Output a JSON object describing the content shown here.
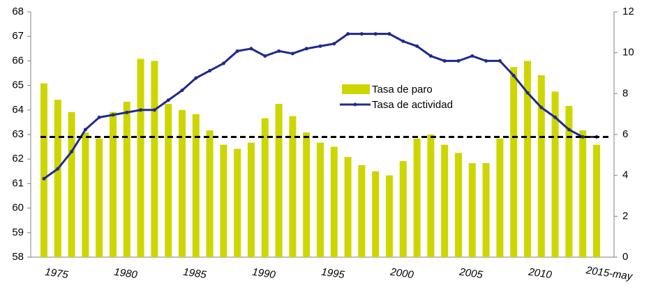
{
  "chart_data": {
    "type": "bar_line",
    "categories": [
      "1975",
      null,
      null,
      null,
      null,
      "1980",
      null,
      null,
      null,
      null,
      "1985",
      null,
      null,
      null,
      null,
      "1990",
      null,
      null,
      null,
      null,
      "1995",
      null,
      null,
      null,
      null,
      "2000",
      null,
      null,
      null,
      null,
      "2005",
      null,
      null,
      null,
      null,
      "2010",
      null,
      null,
      null,
      null,
      "2015-may"
    ],
    "series": [
      {
        "name": "Tasa de paro",
        "type": "bar",
        "axis": "y2",
        "color": "#cdd600",
        "values": [
          8.5,
          7.7,
          7.1,
          6.1,
          5.8,
          7.1,
          7.6,
          9.7,
          9.6,
          7.5,
          7.2,
          7.0,
          6.2,
          5.5,
          5.3,
          5.6,
          6.8,
          7.5,
          6.9,
          6.1,
          5.6,
          5.4,
          4.9,
          4.5,
          4.2,
          4.0,
          4.7,
          5.8,
          6.0,
          5.5,
          5.1,
          4.6,
          4.6,
          5.8,
          9.3,
          9.6,
          8.9,
          8.1,
          7.4,
          6.2,
          5.5
        ]
      },
      {
        "name": "Tasa de actividad",
        "type": "line",
        "axis": "y",
        "color": "#1f2a8c",
        "values": [
          61.2,
          61.6,
          62.3,
          63.2,
          63.7,
          63.8,
          63.9,
          64.0,
          64.0,
          64.4,
          64.8,
          65.3,
          65.6,
          65.9,
          66.4,
          66.5,
          66.2,
          66.4,
          66.3,
          66.5,
          66.6,
          66.7,
          67.1,
          67.1,
          67.1,
          67.1,
          66.8,
          66.6,
          66.2,
          66.0,
          66.0,
          66.2,
          66.0,
          66.0,
          65.4,
          64.7,
          64.1,
          63.7,
          63.2,
          62.9,
          62.9
        ]
      }
    ],
    "reference_line": {
      "value": 62.9,
      "axis": "y",
      "color": "#000000"
    },
    "ylim": [
      58,
      68
    ],
    "yticks": [
      58,
      59,
      60,
      61,
      62,
      63,
      64,
      65,
      66,
      67,
      68
    ],
    "y2lim": [
      0,
      12
    ],
    "y2ticks": [
      0,
      2,
      4,
      6,
      8,
      10,
      12
    ],
    "grid": false
  }
}
